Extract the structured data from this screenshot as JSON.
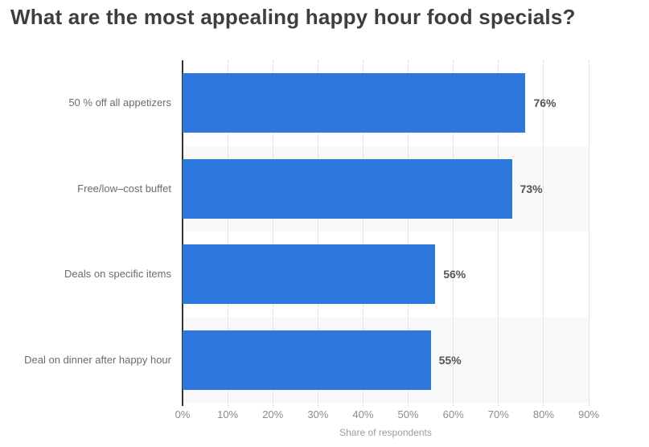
{
  "title": "What are the most appealing happy hour food specials?",
  "chart_data": {
    "type": "bar",
    "orientation": "horizontal",
    "title": "What are the most appealing happy hour food specials?",
    "categories": [
      "50 % off all appetizers",
      "Free/low–cost buffet",
      "Deals on specific items",
      "Deal on dinner after happy hour"
    ],
    "values": [
      76,
      73,
      56,
      55
    ],
    "value_labels": [
      "76%",
      "73%",
      "56%",
      "55%"
    ],
    "xlabel": "Share of respondents",
    "ylabel": "",
    "xlim": [
      0,
      90
    ],
    "xticks": [
      "0%",
      "10%",
      "20%",
      "30%",
      "40%",
      "50%",
      "60%",
      "70%",
      "80%",
      "90%"
    ],
    "grid": "vertical-dotted",
    "legend": "none",
    "row_bands": "alternating starting white",
    "colors": {
      "bar": "#2d77dd",
      "band_alt": "#f8f8f8",
      "gridline": "#cfcfcf",
      "axis_line": "#333333",
      "title_text": "#3e3e3e",
      "category_text": "#666d75",
      "tick_text": "#8c8c8c",
      "value_text": "#50555a",
      "xlabel_text": "#9d9d9d"
    }
  }
}
